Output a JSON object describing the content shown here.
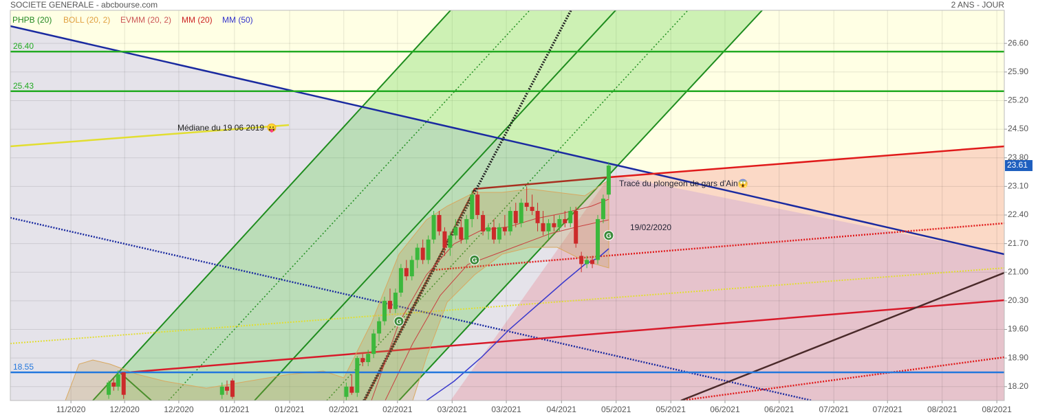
{
  "header": {
    "title": "SOCIETE GENERALE - abcbourse.com",
    "period": "2 ANS - JOUR"
  },
  "chart_data": {
    "type": "candlestick",
    "legend": [
      {
        "name": "PHPB (20)",
        "color": "#228822"
      },
      {
        "name": "BOLL (20, 2)",
        "color": "#e0a040"
      },
      {
        "name": "EVMM (20, 2)",
        "color": "#cc5555"
      },
      {
        "name": "MM (20)",
        "color": "#cc2222"
      },
      {
        "name": "MM (50)",
        "color": "#3333cc"
      }
    ],
    "x": [
      19.8,
      20.8,
      21.7,
      22.8,
      42.6,
      43.6,
      44.7,
      67.6,
      68.7,
      69.8,
      70.9,
      72.0,
      73.1,
      74.2,
      75.3,
      76.4,
      77.5,
      78.6,
      79.7,
      80.8,
      81.9,
      83.0,
      84.1,
      85.2,
      86.3,
      87.4,
      88.5,
      89.6,
      90.7,
      91.8,
      92.9,
      94.0,
      95.1,
      96.2,
      97.3,
      98.4,
      99.5,
      100.6,
      101.7,
      102.8,
      103.9,
      105.0,
      106.1,
      107.2,
      108.3,
      109.4,
      110.5,
      111.6,
      112.7,
      113.8,
      114.9,
      116.0,
      117.1,
      118.2,
      119.3,
      120.4
    ],
    "open": [
      18.0,
      18.3,
      18.2,
      18.55,
      18.0,
      18.2,
      18.35,
      17.95,
      18.2,
      18.05,
      18.9,
      18.8,
      19.0,
      19.5,
      19.8,
      20.3,
      20.1,
      20.5,
      21.1,
      20.9,
      21.3,
      21.6,
      21.3,
      21.8,
      22.4,
      22.0,
      21.6,
      21.9,
      22.1,
      21.8,
      22.3,
      22.9,
      22.4,
      22.0,
      22.1,
      21.8,
      22.1,
      22.0,
      22.5,
      22.2,
      22.7,
      22.6,
      22.5,
      22.2,
      22.0,
      22.2,
      22.1,
      22.3,
      22.2,
      22.5,
      21.4,
      21.2,
      21.3,
      21.3,
      22.3,
      22.9
    ],
    "high": [
      18.35,
      18.4,
      18.6,
      18.55,
      18.3,
      18.35,
      18.4,
      18.3,
      18.5,
      18.95,
      19.0,
      19.1,
      19.6,
      19.9,
      20.4,
      20.6,
      20.6,
      21.2,
      21.3,
      21.4,
      21.7,
      21.8,
      21.9,
      22.5,
      22.5,
      22.1,
      22.0,
      22.3,
      22.3,
      22.4,
      23.0,
      23.0,
      22.5,
      22.2,
      22.3,
      22.2,
      22.4,
      22.6,
      22.7,
      22.8,
      23.1,
      22.9,
      22.7,
      22.5,
      22.3,
      22.4,
      22.4,
      22.5,
      22.6,
      22.6,
      21.5,
      21.4,
      21.4,
      22.4,
      22.9,
      23.7
    ],
    "low": [
      17.9,
      18.1,
      18.1,
      17.9,
      17.9,
      18.0,
      17.9,
      17.85,
      18.0,
      17.95,
      18.7,
      18.7,
      18.9,
      19.3,
      19.7,
      20.0,
      20.0,
      20.4,
      20.8,
      20.8,
      21.1,
      21.2,
      21.2,
      21.7,
      21.9,
      21.4,
      21.4,
      21.8,
      21.7,
      21.7,
      22.1,
      22.3,
      21.9,
      21.8,
      21.7,
      21.7,
      21.9,
      21.9,
      22.1,
      22.1,
      22.5,
      22.4,
      22.0,
      21.9,
      21.8,
      22.0,
      22.0,
      22.1,
      22.1,
      21.6,
      21.0,
      21.1,
      21.1,
      21.2,
      22.2,
      22.8
    ],
    "close": [
      18.3,
      18.2,
      18.5,
      18.0,
      18.2,
      18.1,
      17.95,
      18.2,
      18.05,
      18.9,
      18.8,
      19.0,
      19.5,
      19.8,
      20.3,
      20.1,
      20.5,
      21.1,
      20.9,
      21.3,
      21.6,
      21.3,
      21.8,
      22.4,
      22.0,
      21.6,
      21.9,
      22.1,
      21.8,
      22.3,
      22.9,
      22.4,
      22.0,
      22.1,
      21.8,
      22.1,
      22.0,
      22.5,
      22.2,
      22.7,
      22.6,
      22.5,
      22.2,
      22.0,
      22.2,
      22.1,
      22.3,
      22.2,
      22.5,
      21.7,
      21.2,
      21.3,
      21.2,
      22.3,
      22.8,
      23.61
    ],
    "up_color": "#3cb83c",
    "down_color": "#cc2a2a",
    "xlim": [
      0,
      200
    ],
    "xticks": [
      {
        "value": 12.2,
        "label": "11/2020"
      },
      {
        "value": 23.0,
        "label": "12/2020"
      },
      {
        "value": 33.9,
        "label": "12/2020"
      },
      {
        "value": 45.1,
        "label": "01/2021"
      },
      {
        "value": 56.2,
        "label": "01/2021"
      },
      {
        "value": 67.1,
        "label": "02/2021"
      },
      {
        "value": 77.9,
        "label": "02/2021"
      },
      {
        "value": 88.9,
        "label": "03/2021"
      },
      {
        "value": 99.8,
        "label": "03/2021"
      },
      {
        "value": 110.9,
        "label": "04/2021"
      },
      {
        "value": 121.9,
        "label": "05/2021"
      },
      {
        "value": 132.9,
        "label": "05/2021"
      },
      {
        "value": 143.8,
        "label": "06/2021"
      },
      {
        "value": 154.7,
        "label": "06/2021"
      },
      {
        "value": 165.7,
        "label": "07/2021"
      },
      {
        "value": 176.5,
        "label": "07/2021"
      },
      {
        "value": 187.5,
        "label": "08/2021"
      },
      {
        "value": 198.5,
        "label": "08/2021"
      }
    ],
    "ylim": [
      17.86,
      27.41
    ],
    "yticks": [
      {
        "value": 26.6,
        "label": "26.60"
      },
      {
        "value": 25.9,
        "label": "25.90"
      },
      {
        "value": 25.2,
        "label": "25.20"
      },
      {
        "value": 24.5,
        "label": "24.50"
      },
      {
        "value": 23.8,
        "label": "23.80"
      },
      {
        "value": 23.1,
        "label": "23.10"
      },
      {
        "value": 22.4,
        "label": "22.40"
      },
      {
        "value": 21.7,
        "label": "21.70"
      },
      {
        "value": 21,
        "label": "21.00"
      },
      {
        "value": 20.3,
        "label": "20.30"
      },
      {
        "value": 19.6,
        "label": "19.60"
      },
      {
        "value": 18.9,
        "label": "18.90"
      },
      {
        "value": 18.2,
        "label": "18.20"
      }
    ],
    "grid": true,
    "levels": [
      {
        "value": 26.4,
        "label": "26.40",
        "color": "#22aa22"
      },
      {
        "value": 25.43,
        "label": "25.43",
        "color": "#22aa22"
      },
      {
        "value": 18.55,
        "label": "18.55",
        "color": "#2277dd"
      }
    ],
    "last_price": {
      "value": 23.61,
      "label": "23.61",
      "color": "#1f5fbf"
    },
    "annotations": [
      "Médiane du 19 06 2019 😛",
      "Tracé du plongeon de gars d'Ain😱",
      "19/02/2020"
    ],
    "signals": [
      {
        "label": "G",
        "x": 93.4,
        "y": 21.3
      },
      {
        "label": "G",
        "x": 78.2,
        "y": 19.8
      },
      {
        "label": "G",
        "x": 120.4,
        "y": 21.9
      }
    ]
  }
}
